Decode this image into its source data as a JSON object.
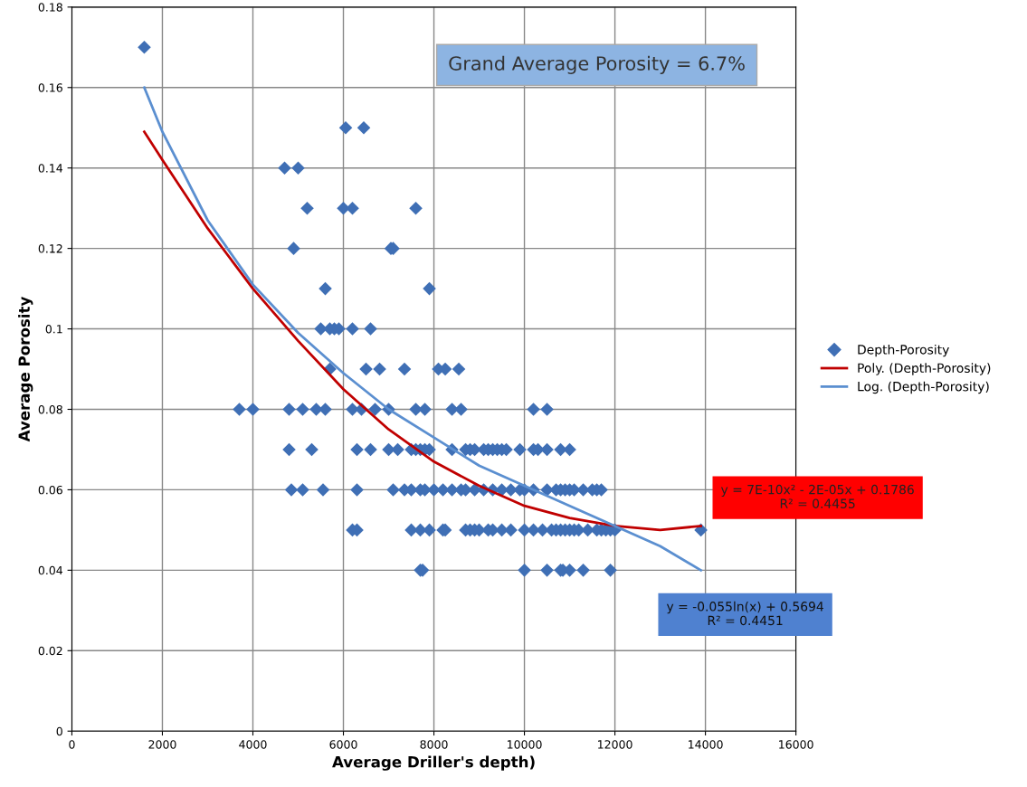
{
  "chart_data": {
    "type": "scatter",
    "xlabel": "Average Driller's depth)",
    "ylabel": "Average Porosity",
    "xlim": [
      0,
      16000
    ],
    "xticks": [
      0,
      2000,
      4000,
      6000,
      8000,
      10000,
      12000,
      14000,
      16000
    ],
    "ylim": [
      0,
      0.18
    ],
    "yticks": [
      0,
      0.02,
      0.04,
      0.06,
      0.08,
      0.1,
      0.12,
      0.14,
      0.16,
      0.18
    ],
    "grid": true,
    "legend": "right",
    "marker": "diamond",
    "annotations": [
      "Grand Average Porosity = 6.7%",
      "y = 7E-10x² - 2E-05x + 0.1786\nR² = 0.4455",
      "y = -0.055ln(x) + 0.5694\nR² = 0.4451"
    ],
    "series": [
      {
        "name": "Depth-Porosity",
        "color": "#3f6fb5",
        "x": [
          1600,
          6050,
          6450,
          4700,
          5000,
          5200,
          6000,
          6200,
          7600,
          4900,
          7050,
          7100,
          5600,
          7900,
          5500,
          5700,
          5800,
          5900,
          6200,
          6600,
          5700,
          6500,
          6800,
          7350,
          8100,
          8250,
          8550,
          3700,
          4000,
          4800,
          5100,
          5400,
          5600,
          6200,
          6400,
          6700,
          7000,
          7600,
          7800,
          8400,
          8600,
          10200,
          10500,
          4800,
          5300,
          6300,
          6600,
          7000,
          7200,
          7500,
          7600,
          7700,
          7800,
          7900,
          8400,
          8700,
          8800,
          8900,
          9100,
          9200,
          9300,
          9400,
          9500,
          9600,
          9900,
          10200,
          10300,
          10500,
          10800,
          11000,
          4850,
          5100,
          5550,
          6300,
          7100,
          7350,
          7500,
          7700,
          7800,
          8000,
          8200,
          8400,
          8600,
          8700,
          8900,
          9100,
          9300,
          9500,
          9700,
          9900,
          10000,
          10200,
          10500,
          10700,
          10800,
          10900,
          11000,
          11100,
          11300,
          11500,
          11600,
          11700,
          6200,
          6300,
          7500,
          7700,
          7900,
          8200,
          8250,
          8700,
          8800,
          8900,
          9000,
          9200,
          9300,
          9500,
          9700,
          10000,
          10200,
          10400,
          10600,
          10700,
          10800,
          10900,
          11000,
          11100,
          11200,
          11400,
          11600,
          11700,
          11800,
          11900,
          12000,
          13900,
          7700,
          7750,
          10000,
          10500,
          10800,
          10850,
          11000,
          11300,
          11900
        ],
        "values": [
          0.17,
          0.15,
          0.15,
          0.14,
          0.14,
          0.13,
          0.13,
          0.13,
          0.13,
          0.12,
          0.12,
          0.12,
          0.11,
          0.11,
          0.1,
          0.1,
          0.1,
          0.1,
          0.1,
          0.1,
          0.09,
          0.09,
          0.09,
          0.09,
          0.09,
          0.09,
          0.09,
          0.08,
          0.08,
          0.08,
          0.08,
          0.08,
          0.08,
          0.08,
          0.08,
          0.08,
          0.08,
          0.08,
          0.08,
          0.08,
          0.08,
          0.08,
          0.08,
          0.07,
          0.07,
          0.07,
          0.07,
          0.07,
          0.07,
          0.07,
          0.07,
          0.07,
          0.07,
          0.07,
          0.07,
          0.07,
          0.07,
          0.07,
          0.07,
          0.07,
          0.07,
          0.07,
          0.07,
          0.07,
          0.07,
          0.07,
          0.07,
          0.07,
          0.07,
          0.07,
          0.06,
          0.06,
          0.06,
          0.06,
          0.06,
          0.06,
          0.06,
          0.06,
          0.06,
          0.06,
          0.06,
          0.06,
          0.06,
          0.06,
          0.06,
          0.06,
          0.06,
          0.06,
          0.06,
          0.06,
          0.06,
          0.06,
          0.06,
          0.06,
          0.06,
          0.06,
          0.06,
          0.06,
          0.06,
          0.06,
          0.06,
          0.06,
          0.05,
          0.05,
          0.05,
          0.05,
          0.05,
          0.05,
          0.05,
          0.05,
          0.05,
          0.05,
          0.05,
          0.05,
          0.05,
          0.05,
          0.05,
          0.05,
          0.05,
          0.05,
          0.05,
          0.05,
          0.05,
          0.05,
          0.05,
          0.05,
          0.05,
          0.05,
          0.05,
          0.05,
          0.05,
          0.05,
          0.05,
          0.05,
          0.04,
          0.04,
          0.04,
          0.04,
          0.04,
          0.04,
          0.04,
          0.04,
          0.04
        ]
      },
      {
        "name": "Poly. (Depth-Porosity)",
        "type": "line",
        "color": "#c00000",
        "marker": "none",
        "x": [
          1600,
          2000,
          3000,
          4000,
          5000,
          6000,
          7000,
          8000,
          9000,
          10000,
          11000,
          12000,
          13000,
          13900
        ],
        "values": [
          0.149,
          0.142,
          0.125,
          0.11,
          0.097,
          0.085,
          0.075,
          0.067,
          0.061,
          0.056,
          0.053,
          0.051,
          0.05,
          0.051
        ]
      },
      {
        "name": "Log. (Depth-Porosity)",
        "type": "line",
        "color": "#5b8fd0",
        "marker": "none",
        "x": [
          1600,
          2000,
          3000,
          4000,
          5000,
          6000,
          7000,
          8000,
          9000,
          10000,
          11000,
          12000,
          13000,
          13900
        ],
        "values": [
          0.16,
          0.149,
          0.127,
          0.111,
          0.099,
          0.089,
          0.08,
          0.073,
          0.066,
          0.061,
          0.056,
          0.051,
          0.046,
          0.04
        ]
      }
    ]
  }
}
